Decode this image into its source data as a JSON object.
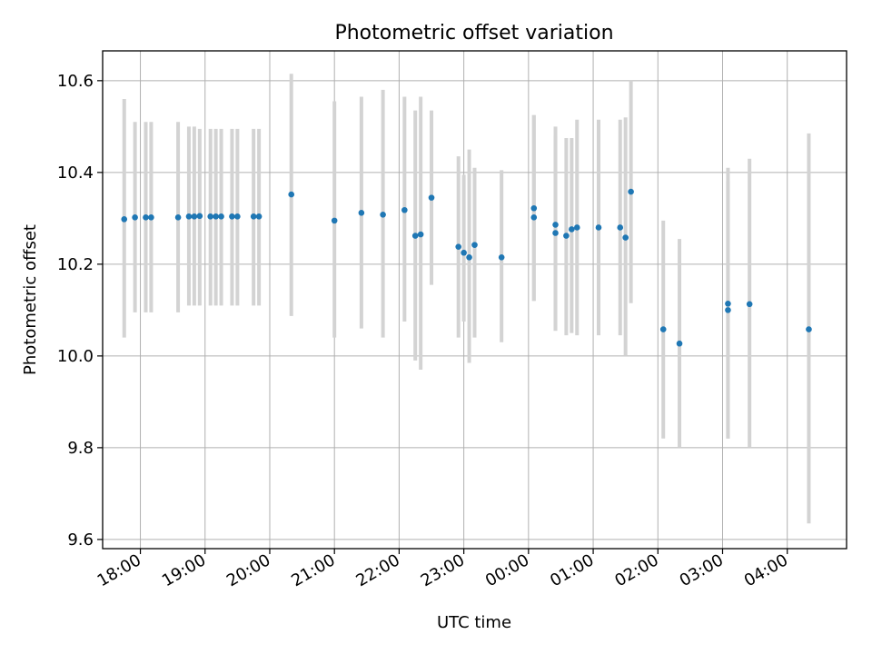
{
  "chart_data": {
    "type": "scatter",
    "title": "Photometric offset variation",
    "xlabel": "UTC time",
    "ylabel": "Photometric offset",
    "grid": true,
    "legend": "none",
    "ylim": [
      9.58,
      10.665
    ],
    "xlim": [
      "17:25",
      "04:55"
    ],
    "x_ticks": [
      "18:00",
      "19:00",
      "20:00",
      "21:00",
      "22:00",
      "23:00",
      "00:00",
      "01:00",
      "02:00",
      "03:00",
      "04:00"
    ],
    "y_ticks": [
      "9.6",
      "9.8",
      "10.0",
      "10.2",
      "10.4",
      "10.6"
    ],
    "colors": {
      "marker": "#1f77b4",
      "errorbar": "#d3d3d3",
      "grid": "#b0b0b0"
    },
    "series": [
      {
        "x": [
          "17:45",
          "17:55",
          "18:05",
          "18:10",
          "18:35",
          "18:45",
          "18:50",
          "18:55",
          "19:05",
          "19:10",
          "19:15",
          "19:25",
          "19:30",
          "19:45",
          "19:50",
          "20:20",
          "21:00",
          "21:25",
          "21:45",
          "22:05",
          "22:15",
          "22:20",
          "22:30",
          "22:55",
          "23:00",
          "23:05",
          "23:10",
          "23:35",
          "00:05",
          "00:05",
          "00:25",
          "00:25",
          "00:35",
          "00:40",
          "00:45",
          "01:05",
          "01:25",
          "01:30",
          "01:35",
          "02:05",
          "02:20",
          "03:05",
          "03:05",
          "03:25",
          "04:20"
        ],
        "y": [
          10.298,
          10.302,
          10.302,
          10.302,
          10.302,
          10.304,
          10.304,
          10.305,
          10.304,
          10.304,
          10.304,
          10.304,
          10.304,
          10.304,
          10.304,
          10.352,
          10.295,
          10.312,
          10.308,
          10.318,
          10.262,
          10.265,
          10.345,
          10.238,
          10.225,
          10.215,
          10.242,
          10.215,
          10.302,
          10.322,
          10.286,
          10.268,
          10.262,
          10.276,
          10.28,
          10.28,
          10.28,
          10.258,
          10.358,
          10.058,
          10.027,
          10.114,
          10.1,
          10.113,
          10.058
        ],
        "ylow": [
          10.04,
          10.095,
          10.095,
          10.095,
          10.095,
          10.11,
          10.11,
          10.11,
          10.11,
          10.11,
          10.11,
          10.11,
          10.11,
          10.11,
          10.11,
          10.087,
          10.04,
          10.06,
          10.04,
          10.075,
          9.99,
          9.97,
          10.155,
          10.04,
          10.075,
          9.985,
          10.04,
          10.03,
          10.12,
          10.12,
          10.055,
          10.055,
          10.045,
          10.05,
          10.045,
          10.045,
          10.045,
          10.0,
          10.115,
          9.82,
          9.8,
          9.82,
          9.82,
          9.8,
          9.635
        ],
        "yhigh": [
          10.56,
          10.51,
          10.51,
          10.51,
          10.51,
          10.5,
          10.5,
          10.495,
          10.495,
          10.495,
          10.495,
          10.495,
          10.495,
          10.495,
          10.495,
          10.615,
          10.555,
          10.565,
          10.58,
          10.565,
          10.535,
          10.565,
          10.535,
          10.435,
          10.395,
          10.45,
          10.41,
          10.405,
          10.525,
          10.525,
          10.5,
          10.48,
          10.475,
          10.475,
          10.515,
          10.515,
          10.515,
          10.52,
          10.6,
          10.295,
          10.255,
          10.41,
          10.38,
          10.43,
          10.485
        ]
      }
    ]
  }
}
